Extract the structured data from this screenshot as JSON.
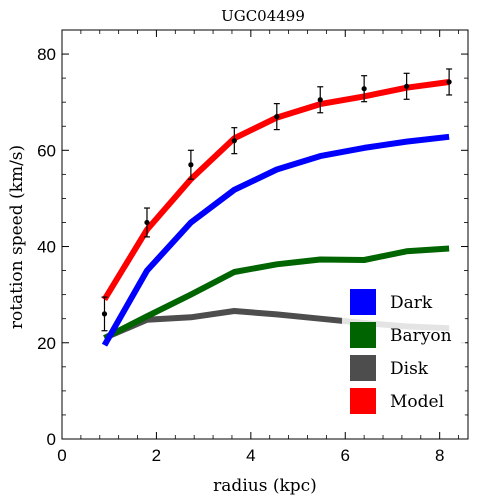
{
  "chart_data": {
    "type": "line",
    "title": "UGC04499",
    "xlabel": "radius (kpc)",
    "ylabel": "rotation speed (km/s)",
    "xlim": [
      0,
      8.6
    ],
    "ylim": [
      0,
      85
    ],
    "xticks": [
      0,
      2,
      4,
      6,
      8
    ],
    "yticks": [
      0,
      20,
      40,
      60,
      80
    ],
    "x": [
      0.9,
      1.8,
      2.73,
      3.65,
      4.55,
      5.47,
      6.4,
      7.3,
      8.2
    ],
    "series": [
      {
        "name": "Dark",
        "color": "#0000ff",
        "values": [
          19.5,
          35,
          45,
          51.8,
          56,
          58.8,
          60.5,
          61.8,
          62.8
        ]
      },
      {
        "name": "Baryon",
        "color": "#006400",
        "values": [
          21,
          25.5,
          30,
          34.7,
          36.3,
          37.3,
          37.2,
          39,
          39.6
        ]
      },
      {
        "name": "Disk",
        "color": "#4d4d4d",
        "values": [
          21,
          24.8,
          25.3,
          26.6,
          25.9,
          25,
          24.1,
          23.4,
          23
        ]
      },
      {
        "name": "Model",
        "color": "#ff0000",
        "values": [
          29,
          43.5,
          54,
          62.5,
          66.8,
          69.6,
          71.2,
          73,
          74.2
        ]
      }
    ],
    "observed": {
      "y": [
        26,
        45,
        57,
        62,
        67,
        70.5,
        72.8,
        73.3,
        74.2
      ],
      "err": [
        3.5,
        3,
        3,
        2.7,
        2.7,
        2.7,
        2.7,
        2.7,
        2.7
      ]
    },
    "grid": false,
    "legend_position": "bottom-right"
  }
}
